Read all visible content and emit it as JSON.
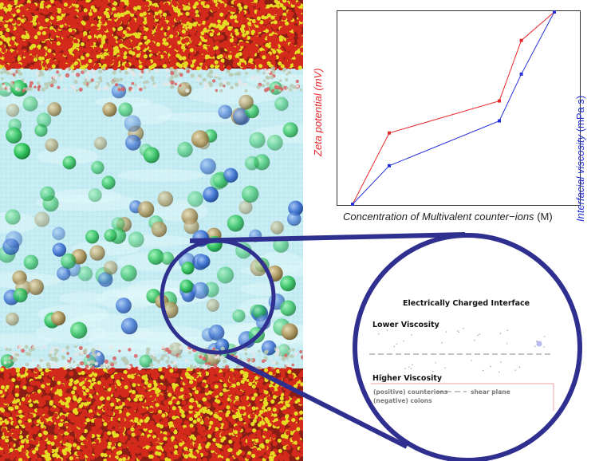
{
  "colors": {
    "zeta": "#e8282b",
    "viscosity": "#2430d6",
    "callout": "#2f2f8f",
    "water": "#bfeaf0",
    "oxygen": "#d42a1c",
    "silicon": "#e6dc24"
  },
  "chart_data": {
    "type": "line",
    "xlabel": "Concentration of Multivalent counter−ions",
    "xlabel_unit": "(M)",
    "ylabel_left": "Zeta potential (mV)",
    "ylabel_right_text": "Interfacial viscosity",
    "ylabel_right_unit": "(mPa s)",
    "grid": false,
    "tick_labels": false,
    "x": [
      0,
      1,
      4,
      4.6,
      5.5
    ],
    "series": [
      {
        "name": "Zeta potential (mV)",
        "axis": "left",
        "color": "#e8282b",
        "values": [
          0,
          1,
          1.45,
          2.3,
          2.7
        ]
      },
      {
        "name": "Interfacial viscosity (mPa s)",
        "axis": "right",
        "color": "#2430d6",
        "values": [
          0,
          0.6,
          1.3,
          2.03,
          3.0
        ]
      }
    ]
  },
  "inset": {
    "title": "Electrically Charged Interface",
    "lower_label": "Lower Viscosity",
    "higher_label": "Higher Viscosity",
    "legend_counterions": "(positive) counterions",
    "legend_shear": "shear plane",
    "legend_coions": "(negative) coions"
  }
}
